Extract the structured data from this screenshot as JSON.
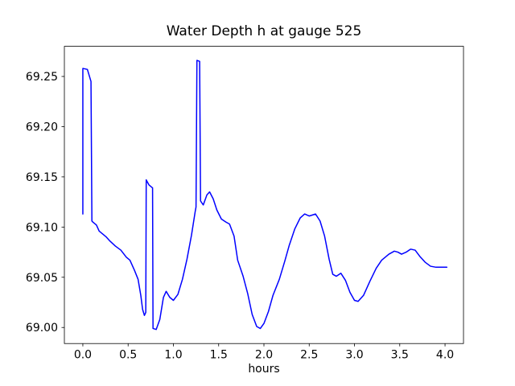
{
  "chart_data": {
    "type": "line",
    "title": "Water Depth h at gauge 525",
    "xlabel": "hours",
    "ylabel": "",
    "xlim": [
      -0.204,
      4.204
    ],
    "ylim": [
      68.984,
      69.28
    ],
    "xticks": [
      0.0,
      0.5,
      1.0,
      1.5,
      2.0,
      2.5,
      3.0,
      3.5,
      4.0
    ],
    "xtick_labels": [
      "0.0",
      "0.5",
      "1.0",
      "1.5",
      "2.0",
      "2.5",
      "3.0",
      "3.5",
      "4.0"
    ],
    "yticks": [
      69.0,
      69.05,
      69.1,
      69.15,
      69.2,
      69.25
    ],
    "ytick_labels": [
      "69.00",
      "69.05",
      "69.10",
      "69.15",
      "69.20",
      "69.25"
    ],
    "grid": false,
    "legend_position": "none",
    "background_color": "#ffffff",
    "axis_color": "#000000",
    "text_color": "#000000",
    "line_color": "#0000ff",
    "line_width": 1.5,
    "series": [
      {
        "name": "Water depth h",
        "x": [
          0.0,
          0.0,
          0.05,
          0.09,
          0.1,
          0.11,
          0.15,
          0.18,
          0.22,
          0.26,
          0.3,
          0.36,
          0.42,
          0.48,
          0.52,
          0.57,
          0.61,
          0.64,
          0.66,
          0.68,
          0.695,
          0.7,
          0.73,
          0.77,
          0.775,
          0.81,
          0.85,
          0.89,
          0.92,
          0.96,
          1.0,
          1.05,
          1.1,
          1.15,
          1.2,
          1.24,
          1.25,
          1.26,
          1.29,
          1.3,
          1.33,
          1.37,
          1.4,
          1.44,
          1.48,
          1.53,
          1.58,
          1.62,
          1.67,
          1.71,
          1.77,
          1.82,
          1.87,
          1.92,
          1.96,
          2.0,
          2.05,
          2.1,
          2.17,
          2.23,
          2.28,
          2.34,
          2.4,
          2.45,
          2.5,
          2.57,
          2.62,
          2.67,
          2.72,
          2.76,
          2.8,
          2.85,
          2.9,
          2.95,
          3.0,
          3.04,
          3.1,
          3.17,
          3.24,
          3.3,
          3.38,
          3.44,
          3.48,
          3.52,
          3.57,
          3.62,
          3.67,
          3.72,
          3.78,
          3.84,
          3.9,
          3.96,
          4.02
        ],
        "y": [
          69.113,
          69.258,
          69.257,
          69.245,
          69.106,
          69.105,
          69.102,
          69.096,
          69.093,
          69.09,
          69.086,
          69.081,
          69.077,
          69.07,
          69.067,
          69.057,
          69.048,
          69.032,
          69.018,
          69.012,
          69.015,
          69.147,
          69.142,
          69.139,
          68.999,
          68.998,
          69.008,
          69.03,
          69.036,
          69.03,
          69.027,
          69.033,
          69.048,
          69.068,
          69.092,
          69.115,
          69.12,
          69.266,
          69.265,
          69.126,
          69.122,
          69.132,
          69.135,
          69.128,
          69.117,
          69.108,
          69.105,
          69.103,
          69.091,
          69.067,
          69.051,
          69.034,
          69.013,
          69.001,
          68.999,
          69.004,
          69.016,
          69.032,
          69.048,
          69.066,
          69.082,
          69.098,
          69.109,
          69.113,
          69.111,
          69.113,
          69.106,
          69.091,
          69.068,
          69.053,
          69.051,
          69.054,
          69.047,
          69.035,
          69.027,
          69.026,
          69.032,
          69.046,
          69.059,
          69.067,
          69.073,
          69.076,
          69.075,
          69.073,
          69.075,
          69.078,
          69.077,
          69.071,
          69.065,
          69.061,
          69.06,
          69.06,
          69.06
        ]
      }
    ]
  }
}
